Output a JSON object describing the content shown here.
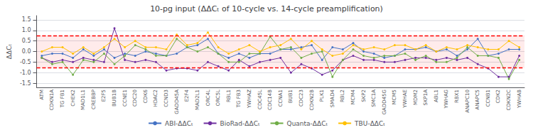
{
  "chart_data": {
    "type": "line",
    "title": "10-pg input (ΔΔCₜ of 10-cycle vs. 14-cycle preamplification)",
    "ylabel": "ΔΔCₜ",
    "categories": [
      "ATM",
      "CDKN1A",
      "TG FB1",
      "CHEK2",
      "MAD1L1",
      "CREBBP",
      "E2F5",
      "BUB1B",
      "CCNE1",
      "CDC20",
      "CDK6",
      "HDAC2",
      "CCND3",
      "GADD45A",
      "E2F4",
      "MAD2L1",
      "ORC4L",
      "ORC5L",
      "RBL1",
      "TG FB3",
      "YWHAZ",
      "CDC45L",
      "CDC14B",
      "CCNA1",
      "BUB1",
      "CDC23",
      "CDKN2B",
      "PLK1",
      "SMAD4",
      "RBL2",
      "MCM4",
      "SKP2",
      "SMC1A",
      "GADD45G",
      "MCM5",
      "YWHAE",
      "MDM2",
      "SKP1A",
      "ABL1",
      "YWHAG",
      "RBX1",
      "ANAPC10",
      "ANAPC5",
      "CCNB1",
      "CDK2",
      "CDKN2C",
      "YWHAB"
    ],
    "series": [
      {
        "name": "ABI-ΔΔCₜ",
        "color": "#4472C4",
        "values": [
          -0.2,
          -0.1,
          -0.1,
          -0.3,
          0.1,
          -0.2,
          0.1,
          -0.3,
          -0.1,
          -0.2,
          0.0,
          -0.1,
          -0.2,
          -0.1,
          0.2,
          0.3,
          0.6,
          -0.1,
          -0.3,
          -0.1,
          -0.3,
          -0.1,
          -0.1,
          0.1,
          0.1,
          0.2,
          0.3,
          -0.4,
          0.2,
          0.1,
          0.4,
          0.0,
          -0.1,
          -0.3,
          -0.2,
          0.1,
          0.1,
          0.2,
          0.0,
          0.1,
          -0.2,
          0.1,
          0.6,
          -0.2,
          -0.1,
          0.1,
          0.1
        ]
      },
      {
        "name": "BioRad-ΔΔCₜ",
        "color": "#7030A0",
        "values": [
          -0.3,
          -0.5,
          -0.4,
          -0.5,
          -0.3,
          -0.4,
          -0.5,
          1.1,
          -0.4,
          -0.5,
          -0.4,
          -0.5,
          -0.9,
          -0.8,
          -0.8,
          -0.9,
          -0.5,
          -0.7,
          -0.9,
          -0.4,
          -0.7,
          -0.5,
          -0.4,
          -0.3,
          -1.0,
          -0.6,
          -0.8,
          -1.1,
          -0.9,
          -0.4,
          -0.2,
          -0.4,
          -0.4,
          -0.5,
          -0.5,
          -0.4,
          -0.3,
          -0.3,
          -0.4,
          -0.3,
          -0.4,
          -0.3,
          -0.6,
          -0.8,
          -1.2,
          -1.2,
          -0.2
        ]
      },
      {
        "name": "Quanta-ΔΔCₜ",
        "color": "#70AD47",
        "values": [
          -0.3,
          -0.6,
          -0.5,
          -1.1,
          -0.4,
          -0.5,
          -0.1,
          -0.6,
          -0.2,
          0.3,
          0.1,
          -0.2,
          -0.2,
          0.6,
          0.2,
          0.0,
          0.2,
          -0.1,
          -0.5,
          -0.5,
          -0.1,
          -0.1,
          0.7,
          0.1,
          0.2,
          -0.3,
          -0.1,
          0.0,
          -1.2,
          -0.4,
          0.1,
          -0.2,
          -0.3,
          -0.2,
          -0.2,
          -0.1,
          -0.4,
          -0.2,
          -0.5,
          -0.5,
          -0.3,
          0.2,
          -0.2,
          -0.2,
          -0.3,
          -1.3,
          -0.4
        ]
      },
      {
        "name": "TBU-ΔΔCₜ",
        "color": "#FFC000",
        "values": [
          0.0,
          0.2,
          0.2,
          -0.1,
          0.2,
          -0.1,
          0.2,
          0.6,
          0.2,
          0.5,
          0.2,
          0.2,
          0.1,
          0.8,
          0.3,
          0.4,
          0.9,
          0.2,
          -0.1,
          0.1,
          0.3,
          0.0,
          0.2,
          0.3,
          0.6,
          0.1,
          0.5,
          0.1,
          -0.2,
          -0.1,
          0.3,
          0.1,
          0.2,
          0.1,
          0.3,
          0.3,
          0.1,
          0.3,
          0.0,
          0.2,
          0.1,
          0.3,
          0.2,
          0.1,
          0.1,
          0.5,
          0.2
        ]
      }
    ],
    "ylim": [
      -1.7,
      1.7
    ],
    "yticks": [
      -1.5,
      {
        "value": -1.0,
        "label": "-1.0"
      },
      -0.5,
      {
        "value": 0.0,
        "label": "0.0"
      },
      0.5,
      {
        "value": 1.0,
        "label": "1.0"
      },
      1.5
    ],
    "hlines": [
      {
        "value": 0.75,
        "color": "red",
        "line_style": "dashed"
      },
      {
        "value": -0.75,
        "color": "red",
        "line_style": "dashed"
      }
    ],
    "band": {
      "from": -0.75,
      "to": 0.75,
      "color": "#FF0000"
    },
    "marker": "circle",
    "grid": true,
    "legend": "bottom"
  }
}
